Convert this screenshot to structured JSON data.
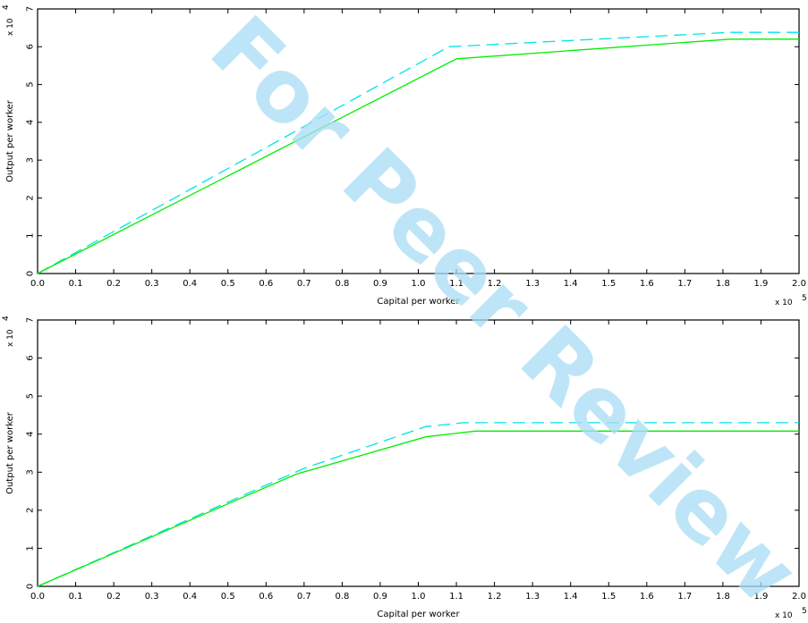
{
  "watermark": {
    "text": "For Peer Review",
    "color": "#a9ddf5"
  },
  "chart_data": [
    {
      "type": "line",
      "xlabel": "Capital per worker",
      "ylabel": "Output per worker",
      "x_multiplier": "x 10",
      "x_exponent": "5",
      "y_multiplier": "x 10",
      "y_exponent": "4",
      "xlim": [
        0,
        2.0
      ],
      "ylim": [
        0,
        7
      ],
      "xticks": [
        "0.0",
        "0.1",
        "0.2",
        "0.3",
        "0.4",
        "0.5",
        "0.6",
        "0.7",
        "0.8",
        "0.9",
        "1.0",
        "1.1",
        "1.2",
        "1.3",
        "1.4",
        "1.5",
        "1.6",
        "1.7",
        "1.8",
        "1.9",
        "2.0"
      ],
      "yticks": [
        "0",
        "1",
        "2",
        "3",
        "4",
        "5",
        "6",
        "7"
      ],
      "grid": false,
      "series": [
        {
          "style": "dashed",
          "color": "#00e5e5",
          "x": [
            0,
            1.08,
            1.82,
            2.0
          ],
          "y": [
            0,
            6.0,
            6.38,
            6.38
          ]
        },
        {
          "style": "solid",
          "color": "#00ee00",
          "x": [
            0,
            1.1,
            1.82,
            2.0
          ],
          "y": [
            0,
            5.68,
            6.2,
            6.2
          ]
        }
      ]
    },
    {
      "type": "line",
      "xlabel": "Capital per worker",
      "ylabel": "Output per worker",
      "x_multiplier": "x 10",
      "x_exponent": "5",
      "y_multiplier": "x 10",
      "y_exponent": "4",
      "xlim": [
        0,
        2.0
      ],
      "ylim": [
        0,
        7
      ],
      "xticks": [
        "0.0",
        "0.1",
        "0.2",
        "0.3",
        "0.4",
        "0.5",
        "0.6",
        "0.7",
        "0.8",
        "0.9",
        "1.0",
        "1.1",
        "1.2",
        "1.3",
        "1.4",
        "1.5",
        "1.6",
        "1.7",
        "1.8",
        "1.9",
        "2.0"
      ],
      "yticks": [
        "0",
        "1",
        "2",
        "3",
        "4",
        "5",
        "6",
        "7"
      ],
      "grid": false,
      "series": [
        {
          "style": "dashed",
          "color": "#00e5e5",
          "x": [
            0,
            0.7,
            1.02,
            1.12,
            2.0
          ],
          "y": [
            0,
            3.1,
            4.2,
            4.3,
            4.3
          ]
        },
        {
          "style": "solid",
          "color": "#00ee00",
          "x": [
            0,
            0.68,
            1.02,
            1.15,
            2.0
          ],
          "y": [
            0,
            2.95,
            3.93,
            4.08,
            4.08
          ]
        }
      ]
    }
  ]
}
